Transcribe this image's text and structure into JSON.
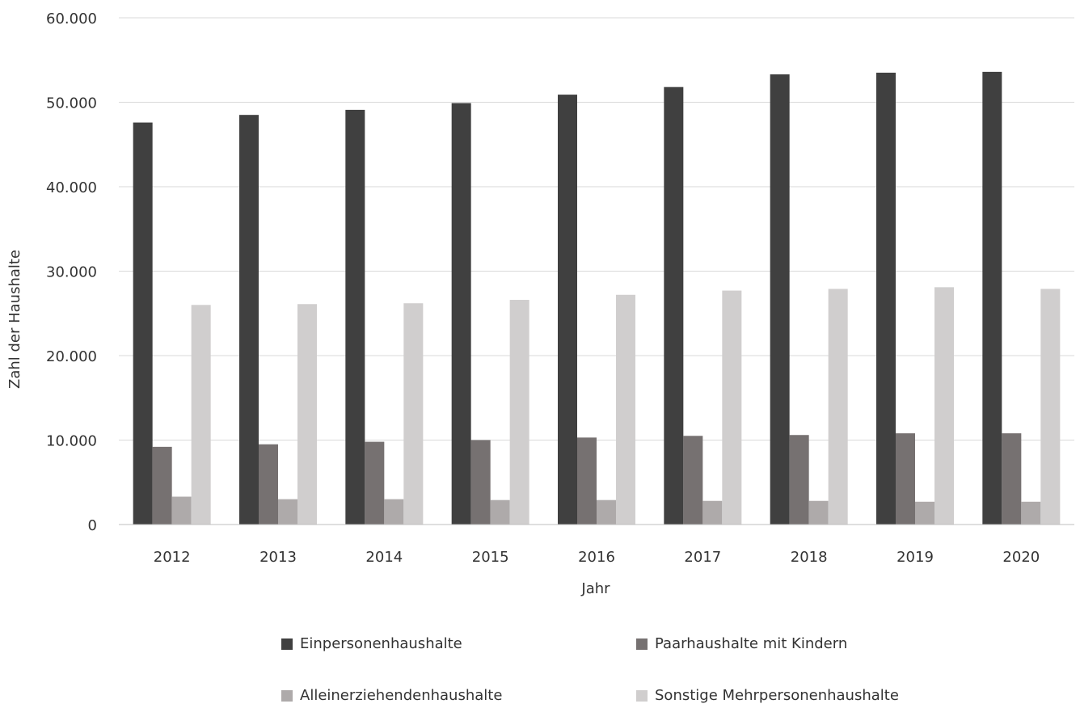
{
  "chart_data": {
    "type": "bar",
    "title": "",
    "xlabel": "Jahr",
    "ylabel": "Zahl der Haushalte",
    "ylim": [
      0,
      60000
    ],
    "yticks": [
      0,
      10000,
      20000,
      30000,
      40000,
      50000,
      60000
    ],
    "ytick_labels": [
      "0",
      "10.000",
      "20.000",
      "30.000",
      "40.000",
      "50.000",
      "60.000"
    ],
    "grid": true,
    "legend_position": "bottom",
    "categories": [
      "2012",
      "2013",
      "2014",
      "2015",
      "2016",
      "2017",
      "2018",
      "2019",
      "2020"
    ],
    "series": [
      {
        "name": "Einpersonenhaushalte",
        "color": "#404040",
        "values": [
          47600,
          48500,
          49100,
          49900,
          50900,
          51800,
          53300,
          53500,
          53600
        ]
      },
      {
        "name": "Paarhaushalte mit Kindern",
        "color": "#767171",
        "values": [
          9200,
          9500,
          9800,
          10000,
          10300,
          10500,
          10600,
          10800,
          10800
        ]
      },
      {
        "name": "Alleinerziehendenhaushalte",
        "color": "#aeaaaa",
        "values": [
          3300,
          3000,
          3000,
          2900,
          2900,
          2800,
          2800,
          2700,
          2700
        ]
      },
      {
        "name": "Sonstige Mehrpersonenhaushalte",
        "color": "#d0cece",
        "values": [
          26000,
          26100,
          26200,
          26600,
          27200,
          27700,
          27900,
          28100,
          27900
        ]
      }
    ]
  }
}
